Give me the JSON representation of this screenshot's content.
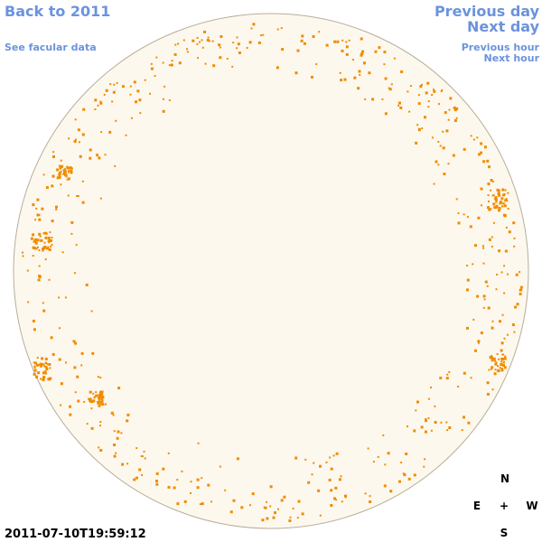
{
  "links": {
    "back": "Back to 2011",
    "facular": "See facular data",
    "previous_day": "Previous day",
    "next_day": "Next day",
    "previous_hour": "Previous hour",
    "next_hour": "Next hour"
  },
  "timestamp": "2011-07-10T19:59:12",
  "compass": {
    "north": "N",
    "east": "E",
    "center": "+",
    "west": "W",
    "south": "S"
  }
}
